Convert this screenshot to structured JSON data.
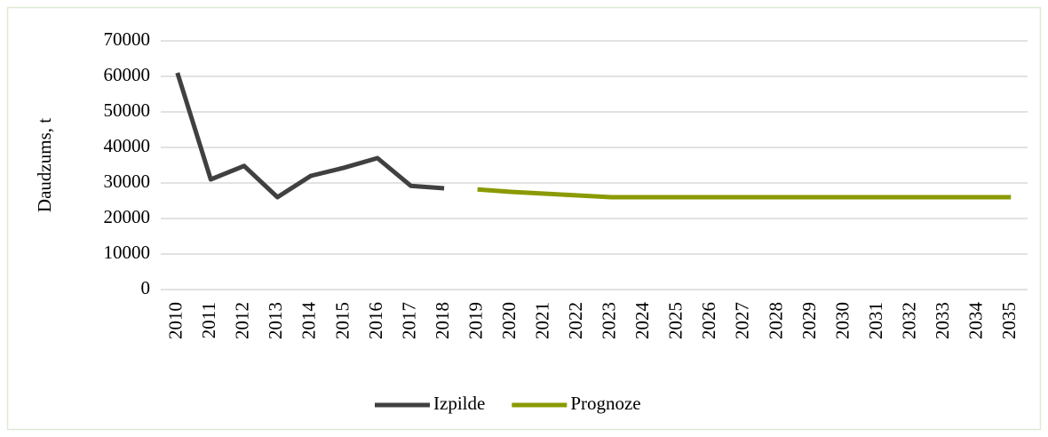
{
  "chart_data": {
    "type": "line",
    "y_label": "Daudzums, t",
    "categories": [
      "2010",
      "2011",
      "2012",
      "2013",
      "2014",
      "2015",
      "2016",
      "2017",
      "2018",
      "2019",
      "2020",
      "2021",
      "2022",
      "2023",
      "2024",
      "2025",
      "2026",
      "2027",
      "2028",
      "2029",
      "2030",
      "2031",
      "2032",
      "2033",
      "2034",
      "2035"
    ],
    "series": [
      {
        "name": "Izpilde",
        "color": "#404040",
        "values": [
          61000,
          31000,
          34800,
          26000,
          32000,
          34300,
          37000,
          29200,
          28500,
          null,
          null,
          null,
          null,
          null,
          null,
          null,
          null,
          null,
          null,
          null,
          null,
          null,
          null,
          null,
          null,
          null
        ]
      },
      {
        "name": "Prognoze",
        "color": "#8a9a00",
        "values": [
          null,
          null,
          null,
          null,
          null,
          null,
          null,
          null,
          null,
          28200,
          27500,
          27000,
          26500,
          26000,
          26000,
          26000,
          26000,
          26000,
          26000,
          26000,
          26000,
          26000,
          26000,
          26000,
          26000,
          26000
        ]
      }
    ],
    "ylim": [
      0,
      70000
    ],
    "yticks": [
      0,
      10000,
      20000,
      30000,
      40000,
      50000,
      60000,
      70000
    ],
    "grid": true,
    "legend": "bottom"
  }
}
